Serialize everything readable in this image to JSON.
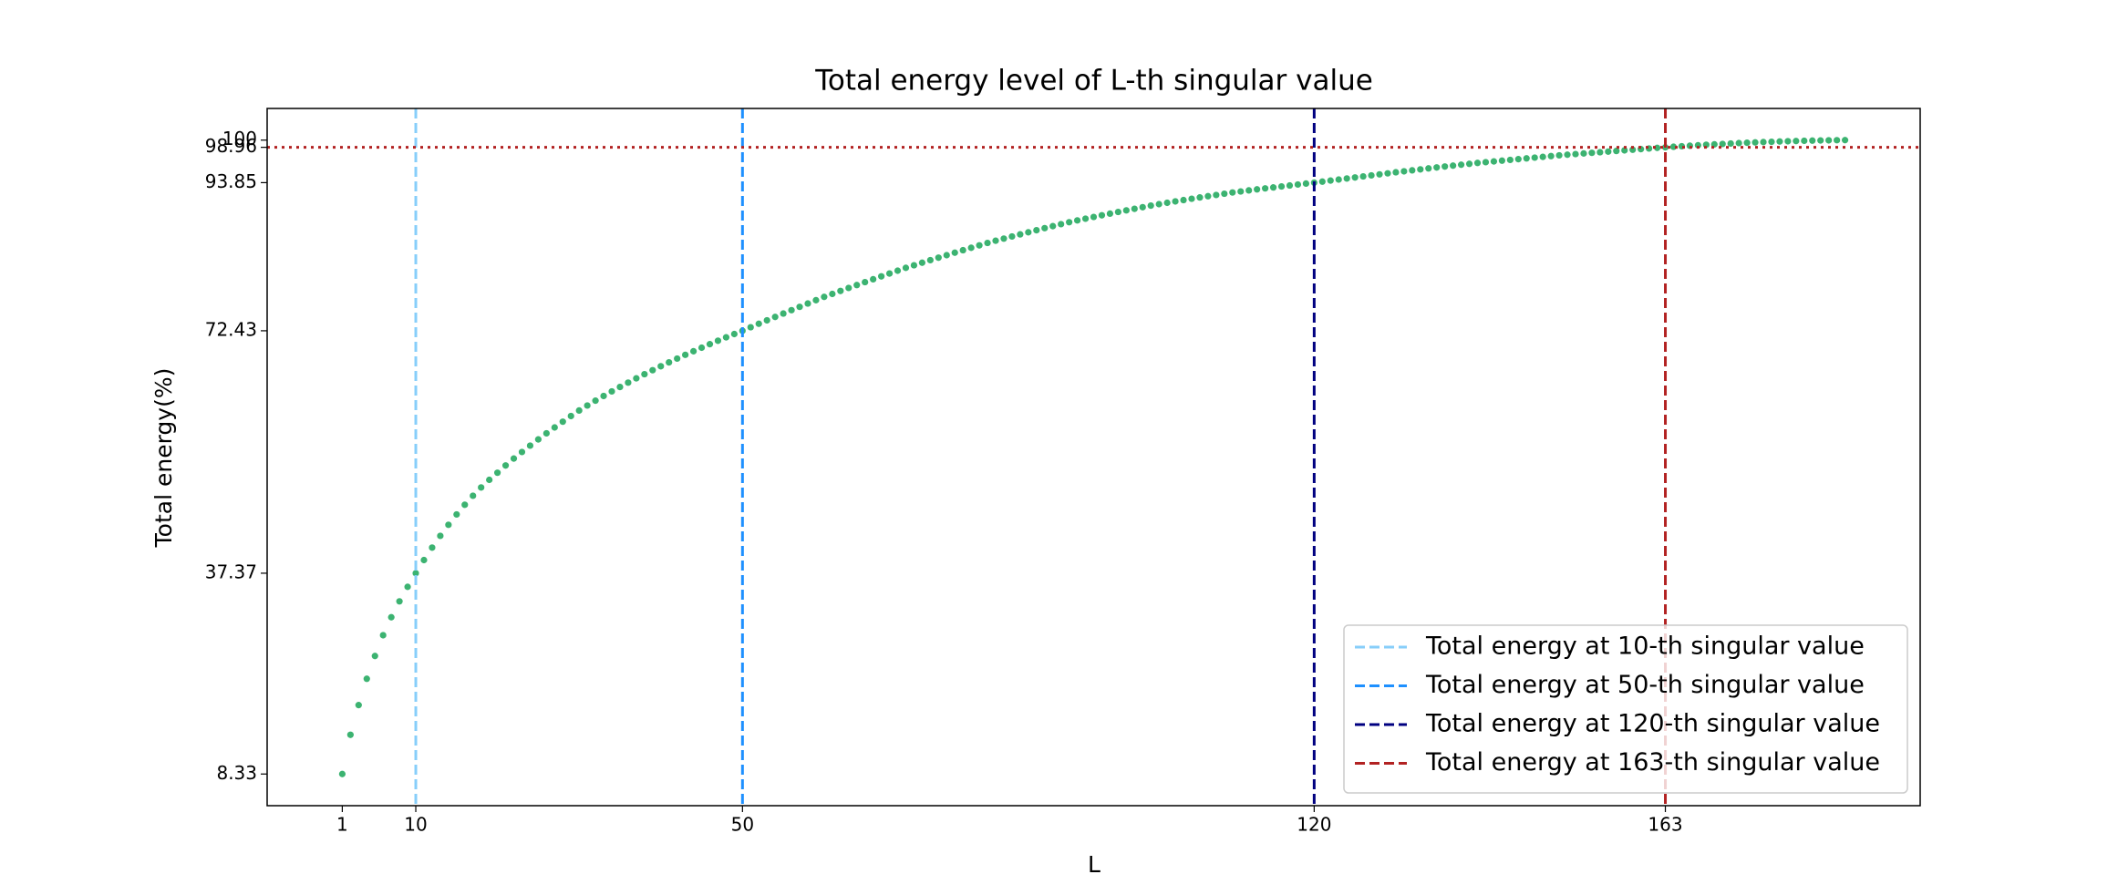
{
  "chart_data": {
    "type": "scatter",
    "title": "Total energy level of L-th singular value",
    "xlabel": "L",
    "ylabel": "Total energy(%)",
    "color": "#3cb371",
    "x": [
      1,
      2,
      3,
      4,
      5,
      6,
      7,
      8,
      9,
      10,
      11,
      12,
      13,
      14,
      15,
      16,
      17,
      18,
      19,
      20,
      21,
      22,
      23,
      24,
      25,
      26,
      27,
      28,
      29,
      30,
      31,
      32,
      33,
      34,
      35,
      36,
      37,
      38,
      39,
      40,
      41,
      42,
      43,
      44,
      45,
      46,
      47,
      48,
      49,
      50,
      51,
      52,
      53,
      54,
      55,
      56,
      57,
      58,
      59,
      60,
      61,
      62,
      63,
      64,
      65,
      66,
      67,
      68,
      69,
      70,
      71,
      72,
      73,
      74,
      75,
      76,
      77,
      78,
      79,
      80,
      81,
      82,
      83,
      84,
      85,
      86,
      87,
      88,
      89,
      90,
      91,
      92,
      93,
      94,
      95,
      96,
      97,
      98,
      99,
      100,
      101,
      102,
      103,
      104,
      105,
      106,
      107,
      108,
      109,
      110,
      111,
      112,
      113,
      114,
      115,
      116,
      117,
      118,
      119,
      120,
      121,
      122,
      123,
      124,
      125,
      126,
      127,
      128,
      129,
      130,
      131,
      132,
      133,
      134,
      135,
      136,
      137,
      138,
      139,
      140,
      141,
      142,
      143,
      144,
      145,
      146,
      147,
      148,
      149,
      150,
      151,
      152,
      153,
      154,
      155,
      156,
      157,
      158,
      159,
      160,
      161,
      162,
      163,
      164,
      165,
      166,
      167,
      168,
      169,
      170,
      171,
      172,
      173,
      174,
      175,
      176,
      177,
      178,
      179,
      180,
      181,
      182,
      183,
      184,
      185
    ],
    "values": [
      8.33,
      14.0,
      18.3,
      22.1,
      25.4,
      28.4,
      31.0,
      33.3,
      35.4,
      37.37,
      39.27,
      41.07,
      42.77,
      44.37,
      45.87,
      47.27,
      48.57,
      49.77,
      50.87,
      51.9,
      52.95,
      53.95,
      54.9,
      55.82,
      56.72,
      57.6,
      58.45,
      59.28,
      60.1,
      60.9,
      61.62,
      62.32,
      63.0,
      63.66,
      64.3,
      64.93,
      65.55,
      66.15,
      66.73,
      67.3,
      67.86,
      68.41,
      68.95,
      69.47,
      69.98,
      70.49,
      70.99,
      71.48,
      71.96,
      72.43,
      72.94,
      73.44,
      73.94,
      74.43,
      74.92,
      75.41,
      75.89,
      76.37,
      76.85,
      77.33,
      77.76,
      78.19,
      78.62,
      79.04,
      79.46,
      79.88,
      80.3,
      80.71,
      81.12,
      81.53,
      81.9,
      82.27,
      82.64,
      83.0,
      83.36,
      83.72,
      84.08,
      84.43,
      84.78,
      85.13,
      85.45,
      85.76,
      86.07,
      86.37,
      86.67,
      86.97,
      87.27,
      87.56,
      87.85,
      88.13,
      88.39,
      88.64,
      88.89,
      89.13,
      89.37,
      89.61,
      89.84,
      90.07,
      90.3,
      90.53,
      90.74,
      90.94,
      91.14,
      91.33,
      91.52,
      91.71,
      91.89,
      92.07,
      92.25,
      92.43,
      92.58,
      92.73,
      92.88,
      93.02,
      93.16,
      93.3,
      93.44,
      93.58,
      93.72,
      93.85,
      94.0,
      94.15,
      94.3,
      94.45,
      94.6,
      94.75,
      94.9,
      95.05,
      95.2,
      95.35,
      95.49,
      95.63,
      95.77,
      95.91,
      96.05,
      96.18,
      96.31,
      96.44,
      96.57,
      96.7,
      96.81,
      96.92,
      97.03,
      97.14,
      97.25,
      97.36,
      97.47,
      97.58,
      97.69,
      97.8,
      97.89,
      97.98,
      98.07,
      98.16,
      98.25,
      98.34,
      98.43,
      98.52,
      98.61,
      98.7,
      98.79,
      98.88,
      98.96,
      99.04,
      99.12,
      99.19,
      99.26,
      99.33,
      99.39,
      99.45,
      99.51,
      99.57,
      99.62,
      99.67,
      99.72,
      99.76,
      99.8,
      99.84,
      99.87,
      99.9,
      99.93,
      99.95,
      99.97,
      99.99,
      100
    ],
    "xlim": [
      -8.2,
      194.2
    ],
    "ylim": [
      3.75,
      104.58
    ],
    "xticks": [
      1,
      10,
      50,
      120,
      163
    ],
    "yticks": [
      8.33,
      37.37,
      72.43,
      93.85,
      98.96,
      100
    ],
    "vlines": [
      {
        "x": 10,
        "color": "#87cefa",
        "label": "Total energy at 10-th singular value"
      },
      {
        "x": 50,
        "color": "#1e90ff",
        "label": "Total energy at 50-th singular value"
      },
      {
        "x": 120,
        "color": "#000080",
        "label": "Total energy at 120-th singular value"
      },
      {
        "x": 163,
        "color": "#b22222",
        "label": "Total energy at 163-th singular value"
      }
    ],
    "hline": {
      "y": 98.96,
      "color": "#b22222"
    },
    "legend": "lower right",
    "grid": false
  }
}
